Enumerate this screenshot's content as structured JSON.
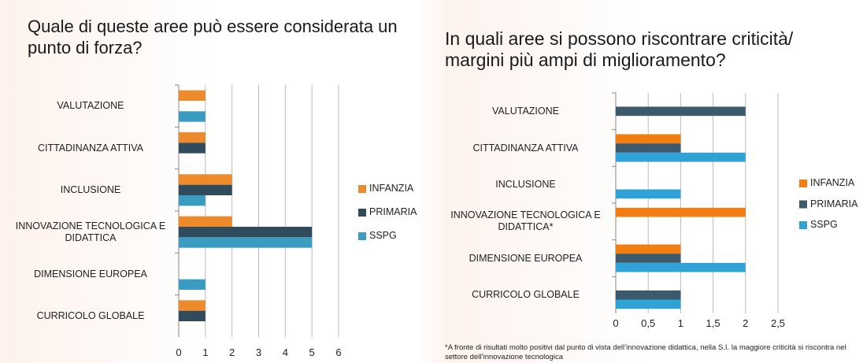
{
  "chart_data": [
    {
      "type": "bar",
      "horizontal": true,
      "title": "Quale di queste aree può essere considerata un punto di forza?",
      "categories": [
        "VALUTAZIONE",
        "CITTADINANZA ATTIVA",
        "INCLUSIONE",
        "INNOVAZIONE TECNOLOGICA E DIDATTICA",
        "DIMENSIONE EUROPEA",
        "CURRICOLO GLOBALE"
      ],
      "series": [
        {
          "name": "INFANZIA",
          "color": "#ec8a2c",
          "values": [
            1,
            1,
            2,
            2,
            0,
            1
          ]
        },
        {
          "name": "PRIMARIA",
          "color": "#2f4b5c",
          "values": [
            0,
            1,
            2,
            5,
            0,
            1
          ]
        },
        {
          "name": "SSPG",
          "color": "#3b9cc2",
          "values": [
            1,
            0,
            1,
            5,
            1,
            0
          ]
        }
      ],
      "xlim": [
        0,
        6
      ],
      "xticks": [
        0,
        1,
        2,
        3,
        4,
        5,
        6
      ],
      "grid": true,
      "legend": "right"
    },
    {
      "type": "bar",
      "horizontal": true,
      "title": "In quali aree si possono riscontrare criticità/ margini più ampi di miglioramento?",
      "categories": [
        "VALUTAZIONE",
        "CITTADINANZA ATTIVA",
        "INCLUSIONE",
        "INNOVAZIONE TECNOLOGICA E DIDATTICA*",
        "DIMENSIONE EUROPEA",
        "CURRICOLO GLOBALE"
      ],
      "series": [
        {
          "name": "INFANZIA",
          "color": "#f27d10",
          "values": [
            0,
            1,
            0,
            2,
            1,
            0
          ]
        },
        {
          "name": "PRIMARIA",
          "color": "#3c5a6b",
          "values": [
            2,
            1,
            0,
            0,
            1,
            1
          ]
        },
        {
          "name": "SSPG",
          "color": "#2fa3d6",
          "values": [
            0,
            2,
            1,
            0,
            2,
            1
          ]
        }
      ],
      "xlim": [
        0,
        2.5
      ],
      "xticks": [
        0,
        {
          "value": 0.5,
          "label": "0,5"
        },
        1,
        {
          "value": 1.5,
          "label": "1,5"
        },
        2,
        {
          "value": 2.5,
          "label": "2,5"
        }
      ],
      "grid": true,
      "legend": "right",
      "annotation": "*A fronte di risultati molto positivi dal punto di vista dell’innovazione didattica, nella S.I. la maggiore criticità si riscontra nel settore dell’innovazione tecnologica"
    }
  ]
}
